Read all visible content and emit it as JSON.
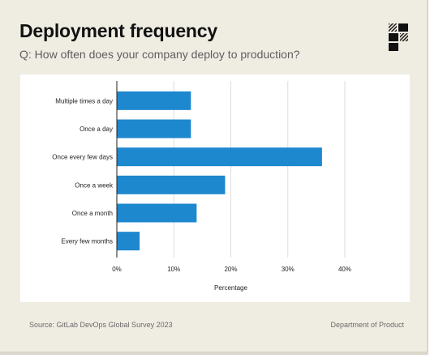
{
  "header": {
    "title": "Deployment frequency",
    "subtitle": "Q: How often does your company deploy to production?"
  },
  "logo": {
    "icon": "department-of-product-logo-icon"
  },
  "footer": {
    "source": "Source: GitLab DevOps Global Survey 2023",
    "brand": "Department of Product"
  },
  "chart_data": {
    "type": "bar",
    "orientation": "horizontal",
    "categories": [
      "Multiple times a day",
      "Once a day",
      "Once every few days",
      "Once a week",
      "Once a month",
      "Every few months"
    ],
    "values": [
      13,
      13,
      36,
      19,
      14,
      4
    ],
    "xlabel": "Percentage",
    "ylabel": "",
    "xlim": [
      0,
      40
    ],
    "xticks": [
      0,
      10,
      20,
      30,
      40
    ],
    "xtick_labels": [
      "0%",
      "10%",
      "20%",
      "30%",
      "40%"
    ],
    "grid": "vertical",
    "bar_color": "#1e88cf",
    "grid_color": "#dddddd"
  }
}
